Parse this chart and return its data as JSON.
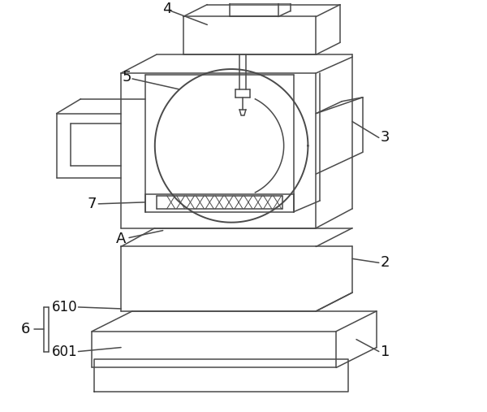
{
  "figure_width": 6.0,
  "figure_height": 5.07,
  "dpi": 100,
  "bg_color": "#ffffff",
  "line_color": "#4a4a4a",
  "line_width": 1.1,
  "annot_fs": 13,
  "annot_color": "#111111"
}
